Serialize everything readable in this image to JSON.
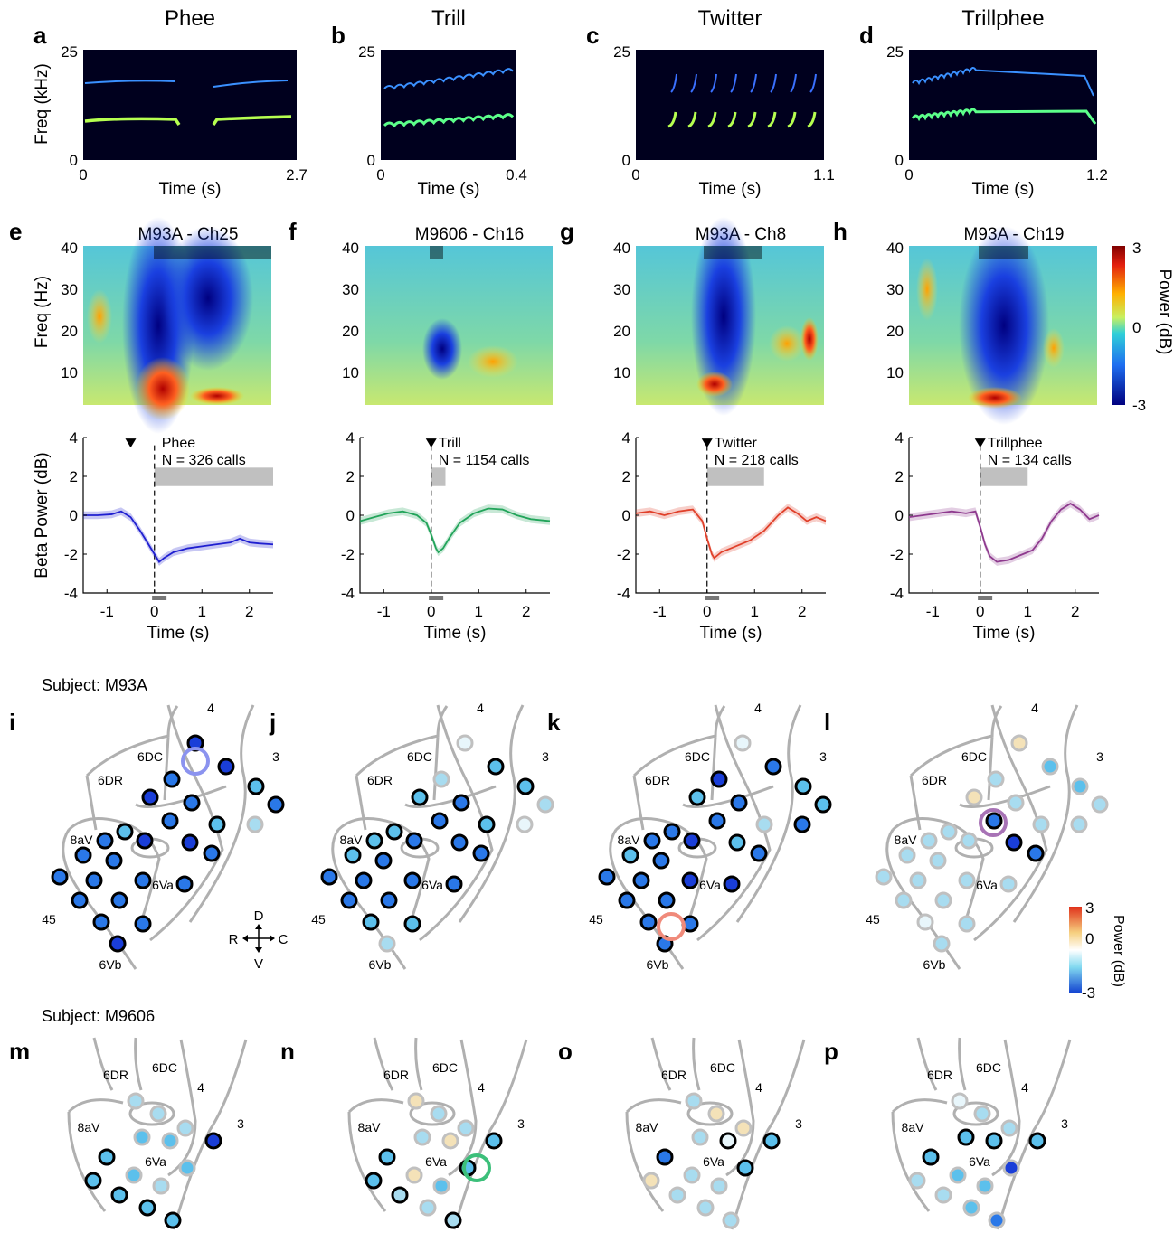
{
  "figure": {
    "panel_labels": [
      "a",
      "b",
      "c",
      "d",
      "e",
      "f",
      "g",
      "h",
      "i",
      "j",
      "k",
      "l",
      "m",
      "n",
      "o",
      "p"
    ],
    "spectrograms": [
      {
        "label": "a",
        "title": "Phee",
        "t_max": "2.7",
        "calls": "phee"
      },
      {
        "label": "b",
        "title": "Trill",
        "t_max": "0.4",
        "calls": "trill"
      },
      {
        "label": "c",
        "title": "Twitter",
        "t_max": "1.1",
        "calls": "twitter"
      },
      {
        "label": "d",
        "title": "Trillphee",
        "t_max": "1.2",
        "calls": "trillphee"
      }
    ],
    "spectrogram_axes": {
      "ylabel": "Freq (kHz)",
      "xlabel": "Time (s)",
      "y_top": "25",
      "y_bottom": "0",
      "x_left": "0"
    },
    "tf_maps": [
      {
        "label": "e",
        "title": "M93A - Ch25"
      },
      {
        "label": "f",
        "title": "M9606 - Ch16"
      },
      {
        "label": "g",
        "title": "M93A - Ch8"
      },
      {
        "label": "h",
        "title": "M93A - Ch19"
      }
    ],
    "tf_axes": {
      "ylabel": "Freq (Hz)",
      "yticks": [
        "40",
        "30",
        "20",
        "10"
      ]
    },
    "tf_colorbar": {
      "ticks": [
        "3",
        "0",
        "-3"
      ],
      "label": "Power (dB)"
    },
    "beta_axes": {
      "ylabel": "Beta Power (dB)",
      "xlabel": "Time (s)",
      "yticks": [
        "4",
        "2",
        "0",
        "-2",
        "-4"
      ],
      "xticks": [
        "-1",
        "0",
        "1",
        "2"
      ]
    },
    "map_colorbar": {
      "ticks": [
        "3",
        "0",
        "-3"
      ],
      "label": "Power (dB)"
    },
    "subjects": [
      "Subject: M93A",
      "Subject: M9606"
    ],
    "regions_m93a": [
      "4",
      "3",
      "6DC",
      "6DR",
      "8aV",
      "6Va",
      "45",
      "6Vb"
    ],
    "regions_m9606": [
      "6DR",
      "6DC",
      "4",
      "3",
      "8aV",
      "6Va"
    ],
    "compass": {
      "d": "D",
      "v": "V",
      "r": "R",
      "c": "C"
    }
  },
  "chart_data": [
    {
      "type": "line",
      "label": "e",
      "call": "Phee",
      "n_text": "N = 326 calls",
      "color": "#1f1fd0",
      "xlim": [
        -1.5,
        2.5
      ],
      "ylim": [
        -4,
        4
      ],
      "onset_marker": -0.5,
      "call_bar": [
        0,
        2.5
      ],
      "x": [
        -1.5,
        -1.2,
        -0.9,
        -0.7,
        -0.5,
        -0.3,
        -0.1,
        0.0,
        0.1,
        0.2,
        0.4,
        0.7,
        1.0,
        1.3,
        1.6,
        1.8,
        2.0,
        2.2,
        2.5
      ],
      "y": [
        0.0,
        0.0,
        0.05,
        0.2,
        -0.1,
        -0.8,
        -1.6,
        -2.0,
        -2.4,
        -2.2,
        -1.9,
        -1.7,
        -1.6,
        -1.5,
        -1.4,
        -1.2,
        -1.4,
        -1.45,
        -1.5
      ]
    },
    {
      "type": "line",
      "label": "f",
      "call": "Trill",
      "n_text": "N = 1154 calls",
      "color": "#22a45a",
      "xlim": [
        -1.5,
        2.5
      ],
      "ylim": [
        -4,
        4
      ],
      "onset_marker": 0,
      "call_bar": [
        0,
        0.3
      ],
      "x": [
        -1.5,
        -1.2,
        -0.9,
        -0.6,
        -0.3,
        -0.1,
        0.0,
        0.1,
        0.15,
        0.25,
        0.4,
        0.6,
        0.9,
        1.2,
        1.5,
        1.8,
        2.1,
        2.5
      ],
      "y": [
        -0.3,
        -0.1,
        0.1,
        0.2,
        0.0,
        -0.4,
        -1.0,
        -1.7,
        -1.9,
        -1.7,
        -1.1,
        -0.4,
        0.1,
        0.35,
        0.3,
        0.0,
        -0.2,
        -0.3
      ]
    },
    {
      "type": "line",
      "label": "g",
      "call": "Twitter",
      "n_text": "N = 218 calls",
      "color": "#e0402a",
      "xlim": [
        -1.5,
        2.5
      ],
      "ylim": [
        -4,
        4
      ],
      "onset_marker": 0,
      "call_bar": [
        0,
        1.2
      ],
      "x": [
        -1.5,
        -1.2,
        -0.9,
        -0.6,
        -0.3,
        -0.1,
        0.0,
        0.1,
        0.15,
        0.3,
        0.6,
        0.9,
        1.2,
        1.5,
        1.7,
        1.9,
        2.1,
        2.3,
        2.5
      ],
      "y": [
        0.1,
        0.2,
        0.0,
        0.2,
        0.3,
        -0.3,
        -1.2,
        -2.0,
        -2.2,
        -1.9,
        -1.6,
        -1.3,
        -0.8,
        0.0,
        0.4,
        0.1,
        -0.3,
        -0.1,
        -0.3
      ]
    },
    {
      "type": "line",
      "label": "h",
      "call": "Trillphee",
      "n_text": "N = 134 calls",
      "color": "#8e3a8e",
      "xlim": [
        -1.5,
        2.5
      ],
      "ylim": [
        -4,
        4
      ],
      "onset_marker": 0,
      "call_bar": [
        0,
        1.0
      ],
      "x": [
        -1.5,
        -1.2,
        -0.9,
        -0.6,
        -0.3,
        -0.1,
        0.0,
        0.1,
        0.2,
        0.35,
        0.6,
        0.9,
        1.1,
        1.3,
        1.5,
        1.7,
        1.9,
        2.1,
        2.3,
        2.5
      ],
      "y": [
        -0.1,
        0.0,
        0.1,
        0.2,
        0.1,
        0.2,
        -0.6,
        -1.5,
        -2.1,
        -2.4,
        -2.3,
        -2.0,
        -1.8,
        -1.2,
        -0.3,
        0.3,
        0.6,
        0.3,
        -0.2,
        0.0
      ]
    }
  ]
}
